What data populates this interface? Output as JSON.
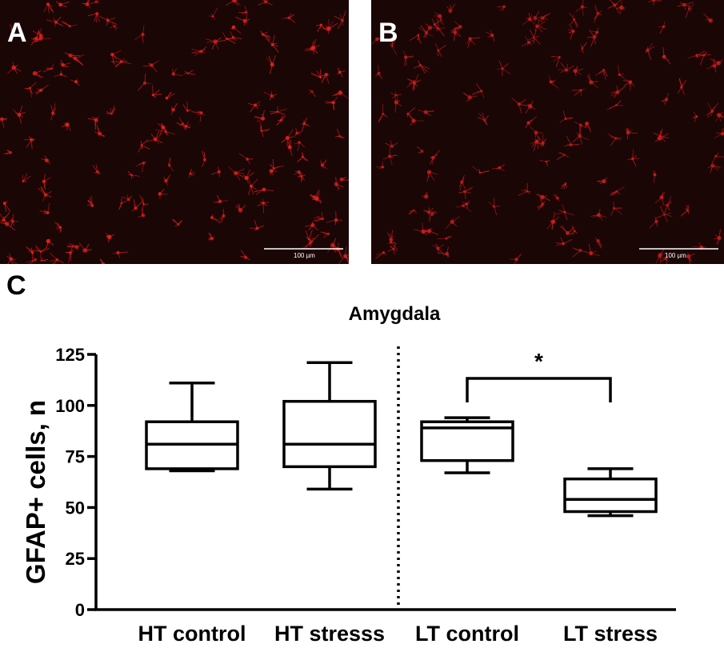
{
  "panels": [
    {
      "letter": "A",
      "scale_label": "100 µm",
      "cell_color": "#e0201e",
      "background": "#1b0606",
      "cell_count": 160
    },
    {
      "letter": "B",
      "scale_label": "100 µm",
      "cell_color": "#c81c1c",
      "background": "#1b0606",
      "cell_count": 150
    }
  ],
  "panel_c_letter": "C",
  "chart_data": {
    "type": "box",
    "title": "Amygdala",
    "ylabel": "GFAP+ cells, n",
    "xlabel": "",
    "ylim": [
      0,
      125
    ],
    "yticks": [
      0,
      25,
      50,
      75,
      100,
      125
    ],
    "categories": [
      "HT control",
      "HT stresss",
      "LT control",
      "LT stress"
    ],
    "boxes": [
      {
        "min": 68,
        "q1": 69,
        "median": 81,
        "q3": 92,
        "max": 111
      },
      {
        "min": 59,
        "q1": 70,
        "median": 81,
        "q3": 102,
        "max": 121
      },
      {
        "min": 67,
        "q1": 73,
        "median": 89,
        "q3": 92,
        "max": 94
      },
      {
        "min": 46,
        "q1": 48,
        "median": 54,
        "q3": 64,
        "max": 69
      }
    ],
    "divider": "dotted line between HT stresss and LT control",
    "significance": {
      "from": "LT control",
      "to": "LT stress",
      "label": "*"
    },
    "grid": false,
    "color": "#000000"
  }
}
